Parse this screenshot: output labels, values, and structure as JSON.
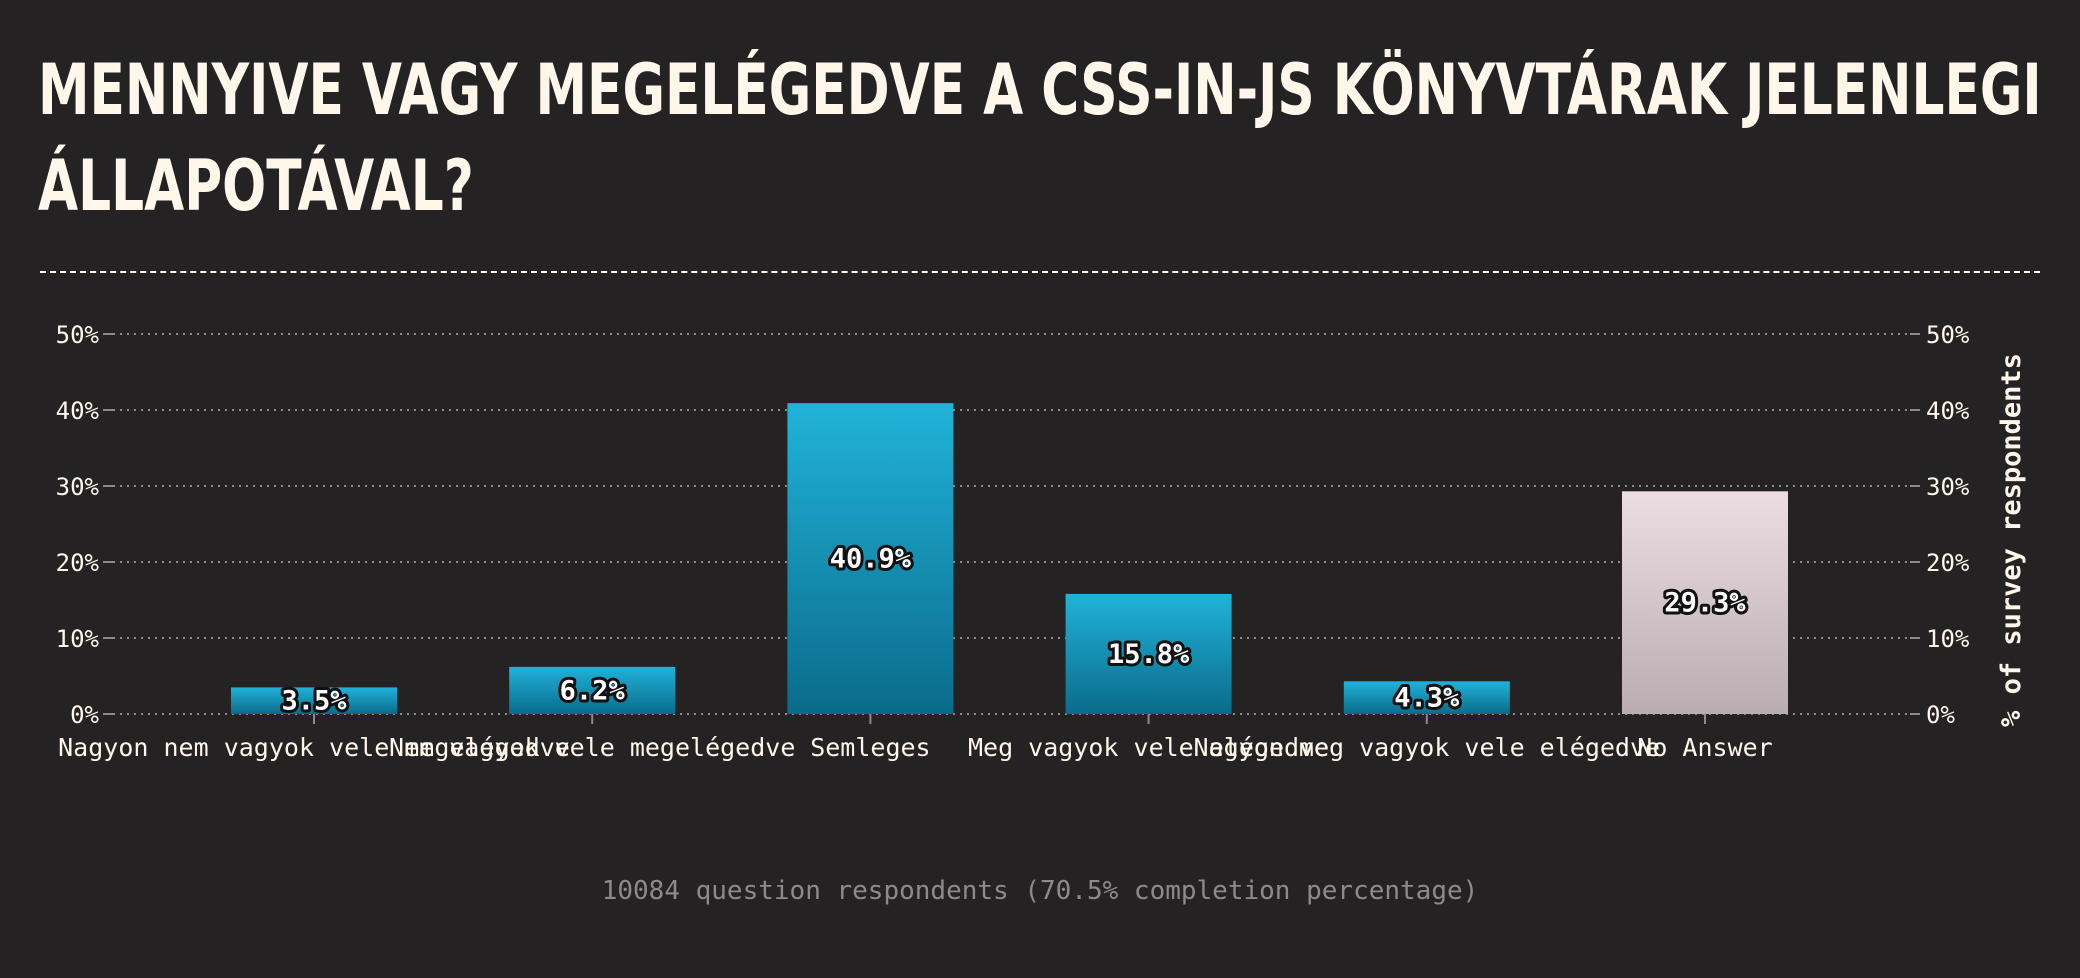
{
  "title_lines": [
    "MENNYIVE VAGY MEGELÉGEDVE A CSS-IN-JS KÖNYVTÁRAK JELENLEGI",
    "ÁLLAPOTÁVAL?"
  ],
  "footer": "10084 question respondents (70.5% completion percentage)",
  "colors": {
    "background": "#252224",
    "text": "#fff7ea",
    "bar_top": "#21b3da",
    "bar_bottom": "#0a6b8a",
    "no_answer_top": "#ecdde2",
    "no_answer_bottom": "#b9adb2",
    "grid": "#8e8a8c",
    "footer": "#8e8a8c"
  },
  "chart_data": {
    "type": "bar",
    "categories": [
      "Nagyon nem vagyok vele megelégedve",
      "Nem vagyok vele megelégedve",
      "Semleges",
      "Meg vagyok vele elégedve",
      "Nagyon meg vagyok vele elégedve",
      "No Answer"
    ],
    "values": [
      3.5,
      6.2,
      40.9,
      15.8,
      4.3,
      29.3
    ],
    "value_labels": [
      "3.5%",
      "6.2%",
      "40.9%",
      "15.8%",
      "4.3%",
      "29.3%"
    ],
    "yticks": [
      "0%",
      "10%",
      "20%",
      "30%",
      "40%",
      "50%"
    ],
    "ylim": [
      0,
      50
    ],
    "ylabel_right": "% of survey respondents",
    "grid": true,
    "highlight_category": "No Answer"
  }
}
